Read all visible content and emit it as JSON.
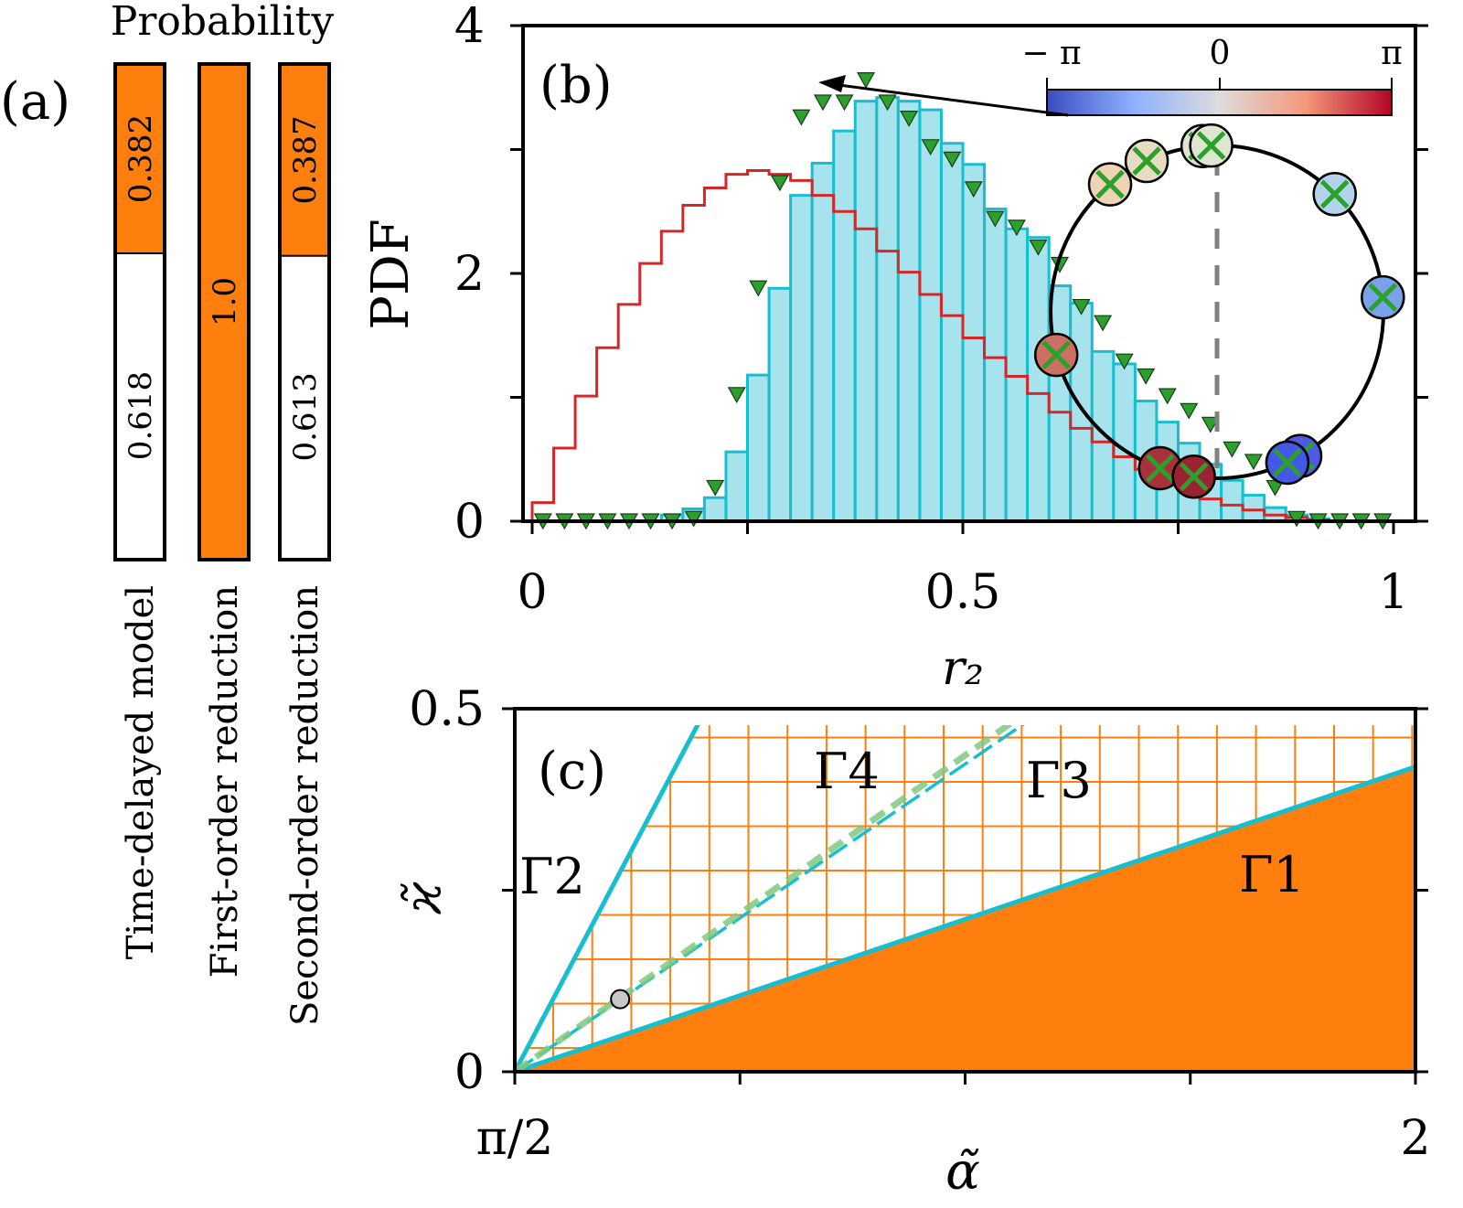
{
  "colors": {
    "orange": "#ff7f0e",
    "hist_fill": "#a6e3ec",
    "hist_edge": "#17becf",
    "red_step": "#d62728",
    "triangle": "#2ca02c",
    "boundary": "#17becf",
    "dashed_green": "#7fc97f",
    "grid_orange": "#ff7f0e",
    "marker_grey": "#c8c8c8",
    "dashed_grey": "#808080"
  },
  "chart_data": [
    {
      "panel": "a",
      "type": "bar",
      "panel_label": "(a)",
      "title": "Probability",
      "categories": [
        "Time-delayed model",
        "First-order reduction",
        "Second-order reduction"
      ],
      "series": [
        {
          "name": "orange",
          "values": [
            0.382,
            1.0,
            0.387
          ]
        },
        {
          "name": "white",
          "values": [
            0.618,
            0.0,
            0.613
          ]
        }
      ],
      "labels": {
        "orange": [
          "0.382",
          "1.0",
          "0.387"
        ],
        "white": [
          "0.618",
          "",
          "0.613"
        ]
      }
    },
    {
      "panel": "b",
      "type": "bar",
      "panel_label": "(b)",
      "xlabel": "r₂",
      "ylabel": "PDF",
      "xlim": [
        0,
        1
      ],
      "ylim": [
        0,
        4
      ],
      "xticks": [
        0,
        0.25,
        0.5,
        0.75,
        1
      ],
      "xtick_labels": [
        "0",
        "",
        "0.5",
        "",
        "1"
      ],
      "yticks": [
        0,
        1,
        2,
        3,
        4
      ],
      "ytick_labels": [
        "0",
        "",
        "2",
        "",
        "4"
      ],
      "bin_width": 0.025,
      "histogram": {
        "name": "histogram",
        "values": [
          0,
          0,
          0,
          0,
          0,
          0,
          0.05,
          0.1,
          0.19,
          0.56,
          1.18,
          1.88,
          2.63,
          2.89,
          3.15,
          3.39,
          3.42,
          3.39,
          3.32,
          3.05,
          2.88,
          2.52,
          2.36,
          2.29,
          1.9,
          1.76,
          1.37,
          1.27,
          0.97,
          0.8,
          0.63,
          0.46,
          0.33,
          0.21,
          0.11,
          0.05,
          0.02,
          0,
          0,
          0
        ]
      },
      "red_step": {
        "name": "step",
        "values": [
          0.15,
          0.59,
          1.01,
          1.4,
          1.75,
          2.08,
          2.34,
          2.55,
          2.69,
          2.8,
          2.83,
          2.8,
          2.75,
          2.63,
          2.5,
          2.36,
          2.18,
          2.01,
          1.83,
          1.66,
          1.48,
          1.32,
          1.17,
          1.03,
          0.88,
          0.75,
          0.64,
          0.52,
          0.42,
          0.33,
          0.26,
          0.18,
          0.13,
          0.09,
          0.05,
          0.03,
          0.01,
          0,
          0,
          0
        ]
      },
      "triangles": {
        "name": "markers",
        "x": [
          0.0125,
          0.0375,
          0.0625,
          0.0875,
          0.1125,
          0.1375,
          0.1625,
          0.1875,
          0.2125,
          0.2375,
          0.2625,
          0.2875,
          0.3125,
          0.3375,
          0.3625,
          0.3875,
          0.4125,
          0.4375,
          0.4625,
          0.4875,
          0.5125,
          0.5375,
          0.5625,
          0.5875,
          0.6125,
          0.6375,
          0.6625,
          0.6875,
          0.7125,
          0.7375,
          0.7625,
          0.7875,
          0.8125,
          0.8375,
          0.8625,
          0.8875,
          0.9125,
          0.9375,
          0.9625,
          0.9875
        ],
        "values": [
          0,
          0,
          0,
          0,
          0,
          0,
          0,
          0.02,
          0.27,
          1.02,
          1.88,
          2.73,
          3.26,
          3.38,
          3.38,
          3.56,
          3.38,
          3.25,
          3.02,
          2.92,
          2.68,
          2.44,
          2.37,
          2.21,
          2.07,
          1.73,
          1.6,
          1.29,
          1.17,
          1.01,
          0.89,
          0.78,
          0.58,
          0.48,
          0.27,
          0.02,
          0,
          0,
          0,
          0
        ]
      },
      "inset": {
        "colorbar_ticks": [
          "− π",
          "0",
          "π"
        ],
        "colorbar_range": [
          -3.14159,
          3.14159
        ],
        "oscillator_phases_deg": [
          95,
          115,
          130,
          92,
          45,
          5,
          195,
          250,
          262,
          300,
          295
        ],
        "oscillator_colors": [
          "#dde5cf",
          "#e8dcc0",
          "#eed3b4",
          "#dfe6cf",
          "#b3d3ec",
          "#7aa2ea",
          "#cc7064",
          "#a8323b",
          "#9b2230",
          "#4d5be0",
          "#4458e6"
        ]
      }
    },
    {
      "panel": "c",
      "type": "area",
      "panel_label": "(c)",
      "xlabel": "α̃",
      "ylabel": "ϰ̃",
      "xlim": [
        1.5708,
        2
      ],
      "ylim": [
        0,
        0.5
      ],
      "xtick_labels": [
        "π/2",
        "2"
      ],
      "ytick_labels": [
        "0",
        "0.5"
      ],
      "curves": [
        {
          "name": "Γ1",
          "style": "solid",
          "points": [
            [
              1.5708,
              0
            ],
            [
              2,
              0.42
            ]
          ]
        },
        {
          "name": "Γ2",
          "style": "solid",
          "points": [
            [
              1.5708,
              0
            ],
            [
              1.662,
              0.5
            ]
          ]
        },
        {
          "name": "Γ3",
          "style": "dashed",
          "points": [
            [
              1.5708,
              0
            ],
            [
              1.824,
              0.5
            ]
          ]
        },
        {
          "name": "Γ4",
          "style": "dashed-green",
          "points": [
            [
              1.5708,
              0
            ],
            [
              1.817,
              0.5
            ]
          ]
        }
      ],
      "regions": {
        "filled_orange": "below Γ1",
        "hatched_grid": "between Γ1 and Γ2"
      },
      "annotations": [
        "Γ1",
        "Γ2",
        "Γ3",
        "Γ4"
      ],
      "marker_point": [
        1.621,
        0.1
      ]
    }
  ]
}
